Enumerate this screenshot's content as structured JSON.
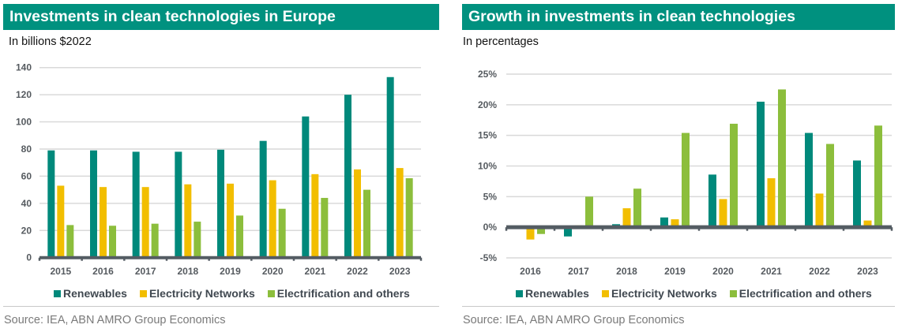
{
  "colors": {
    "renewables": "#00897B",
    "electricity_networks": "#F2BE00",
    "electrification_others": "#8CBE3C",
    "header_bg": "#00917F",
    "axis": "#545C63",
    "grid": "#D9D9D9"
  },
  "legend": {
    "renewables": "Renewables",
    "electricity_networks": "Electricity Networks",
    "electrification_others": "Electrification and others"
  },
  "source": "Source: IEA, ABN AMRO Group Economics",
  "chart_data": [
    {
      "type": "bar",
      "title": "Investments in clean technologies in Europe",
      "subtitle": "In billions $2022",
      "xlabel": "",
      "ylabel": "In billions $2022",
      "categories": [
        "2015",
        "2016",
        "2017",
        "2018",
        "2019",
        "2020",
        "2021",
        "2022",
        "2023"
      ],
      "series": [
        {
          "name": "Renewables",
          "key": "renewables",
          "values": [
            79,
            79,
            78,
            78,
            79.5,
            86,
            104,
            120,
            133
          ]
        },
        {
          "name": "Electricity Networks",
          "key": "electricity_networks",
          "values": [
            53,
            52,
            52,
            54,
            54.5,
            57,
            61.5,
            65,
            66
          ]
        },
        {
          "name": "Electrification and others",
          "key": "electrification_others",
          "values": [
            24,
            23.5,
            25,
            26.5,
            31,
            36,
            44,
            50,
            58.5
          ]
        }
      ],
      "ylim": [
        0,
        140
      ],
      "yticks": [
        0,
        20,
        40,
        60,
        80,
        100,
        120,
        140
      ],
      "ytick_labels": [
        "0",
        "20",
        "40",
        "60",
        "80",
        "100",
        "120",
        "140"
      ],
      "grid": true,
      "legend_position": "bottom"
    },
    {
      "type": "bar",
      "title": "Growth in investments in clean technologies",
      "subtitle": "In percentages",
      "xlabel": "",
      "ylabel": "In percentages",
      "categories": [
        "2016",
        "2017",
        "2018",
        "2019",
        "2020",
        "2021",
        "2022",
        "2023"
      ],
      "series": [
        {
          "name": "Renewables",
          "key": "renewables",
          "values": [
            0.0,
            -1.5,
            0.5,
            1.6,
            8.6,
            20.5,
            15.4,
            10.9
          ]
        },
        {
          "name": "Electricity Networks",
          "key": "electricity_networks",
          "values": [
            -2.0,
            0.3,
            3.1,
            1.3,
            4.6,
            8.0,
            5.5,
            1.1
          ]
        },
        {
          "name": "Electrification and others",
          "key": "electrification_others",
          "values": [
            -1.1,
            5.0,
            6.3,
            15.4,
            16.9,
            22.5,
            13.6,
            16.6
          ]
        }
      ],
      "ylim": [
        -5,
        25
      ],
      "yticks": [
        -5,
        0,
        5,
        10,
        15,
        20,
        25
      ],
      "ytick_labels": [
        "-5%",
        "0%",
        "5%",
        "10%",
        "15%",
        "20%",
        "25%"
      ],
      "grid": true,
      "legend_position": "bottom"
    }
  ]
}
